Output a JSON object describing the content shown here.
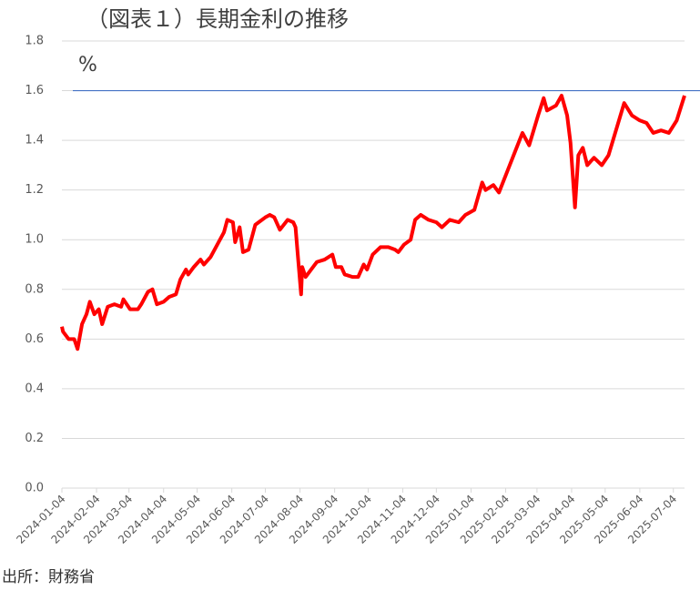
{
  "chart_data": {
    "type": "line",
    "title": "（図表１）長期金利の推移",
    "unit_label": "%",
    "source": "出所：財務省",
    "x": [
      "2024-01-04",
      "2024-01-05",
      "2024-01-10",
      "2024-01-15",
      "2024-01-18",
      "2024-01-22",
      "2024-01-26",
      "2024-01-29",
      "2024-02-02",
      "2024-02-06",
      "2024-02-09",
      "2024-02-14",
      "2024-02-20",
      "2024-02-26",
      "2024-02-28",
      "2024-03-05",
      "2024-03-12",
      "2024-03-15",
      "2024-03-21",
      "2024-03-25",
      "2024-03-29",
      "2024-04-04",
      "2024-04-09",
      "2024-04-15",
      "2024-04-19",
      "2024-04-24",
      "2024-04-26",
      "2024-05-01",
      "2024-05-07",
      "2024-05-10",
      "2024-05-16",
      "2024-05-22",
      "2024-05-28",
      "2024-05-31",
      "2024-06-05",
      "2024-06-07",
      "2024-06-11",
      "2024-06-14",
      "2024-06-19",
      "2024-06-25",
      "2024-06-28",
      "2024-07-04",
      "2024-07-08",
      "2024-07-12",
      "2024-07-17",
      "2024-07-24",
      "2024-07-29",
      "2024-07-31",
      "2024-08-02",
      "2024-08-05",
      "2024-08-06",
      "2024-08-09",
      "2024-08-14",
      "2024-08-19",
      "2024-08-26",
      "2024-09-02",
      "2024-09-05",
      "2024-09-10",
      "2024-09-13",
      "2024-09-20",
      "2024-09-25",
      "2024-09-30",
      "2024-10-03",
      "2024-10-08",
      "2024-10-15",
      "2024-10-22",
      "2024-10-28",
      "2024-10-31",
      "2024-11-05",
      "2024-11-11",
      "2024-11-15",
      "2024-11-20",
      "2024-11-27",
      "2024-12-04",
      "2024-12-09",
      "2024-12-16",
      "2024-12-24",
      "2024-12-30",
      "2025-01-07",
      "2025-01-14",
      "2025-01-17",
      "2025-01-24",
      "2025-01-29",
      "2025-02-05",
      "2025-02-12",
      "2025-02-19",
      "2025-02-25",
      "2025-03-05",
      "2025-03-10",
      "2025-03-13",
      "2025-03-21",
      "2025-03-26",
      "2025-03-31",
      "2025-04-03",
      "2025-04-07",
      "2025-04-10",
      "2025-04-14",
      "2025-04-18",
      "2025-04-24",
      "2025-05-01",
      "2025-05-07",
      "2025-05-13",
      "2025-05-21",
      "2025-05-28",
      "2025-06-04",
      "2025-06-10",
      "2025-06-16",
      "2025-06-23",
      "2025-06-30",
      "2025-07-07",
      "2025-07-14"
    ],
    "series": [
      {
        "name": "長期金利",
        "color": "#ff0000",
        "values": [
          0.65,
          0.63,
          0.6,
          0.6,
          0.56,
          0.66,
          0.7,
          0.75,
          0.7,
          0.72,
          0.66,
          0.73,
          0.74,
          0.73,
          0.76,
          0.72,
          0.72,
          0.74,
          0.79,
          0.8,
          0.74,
          0.75,
          0.77,
          0.78,
          0.84,
          0.88,
          0.86,
          0.89,
          0.92,
          0.9,
          0.93,
          0.98,
          1.03,
          1.08,
          1.07,
          0.99,
          1.05,
          0.95,
          0.96,
          1.06,
          1.07,
          1.09,
          1.1,
          1.09,
          1.04,
          1.08,
          1.07,
          1.05,
          0.94,
          0.78,
          0.89,
          0.85,
          0.88,
          0.91,
          0.92,
          0.94,
          0.89,
          0.89,
          0.86,
          0.85,
          0.85,
          0.9,
          0.88,
          0.94,
          0.97,
          0.97,
          0.96,
          0.95,
          0.98,
          1.0,
          1.08,
          1.1,
          1.08,
          1.07,
          1.05,
          1.08,
          1.07,
          1.1,
          1.12,
          1.23,
          1.2,
          1.22,
          1.19,
          1.27,
          1.35,
          1.43,
          1.38,
          1.5,
          1.57,
          1.52,
          1.54,
          1.58,
          1.5,
          1.39,
          1.13,
          1.34,
          1.37,
          1.3,
          1.33,
          1.3,
          1.34,
          1.43,
          1.55,
          1.5,
          1.48,
          1.47,
          1.43,
          1.44,
          1.43,
          1.48,
          1.58
        ]
      }
    ],
    "reference_line": {
      "value": 1.6,
      "color": "#4472c4"
    },
    "xlim": [
      "2024-01-04",
      "2025-07-14"
    ],
    "xticks": [
      "2024-01-04",
      "2024-02-04",
      "2024-03-04",
      "2024-04-04",
      "2024-05-04",
      "2024-06-04",
      "2024-07-04",
      "2024-08-04",
      "2024-09-04",
      "2024-10-04",
      "2024-11-04",
      "2024-12-04",
      "2025-01-04",
      "2025-02-04",
      "2025-03-04",
      "2025-04-04",
      "2025-05-04",
      "2025-06-04",
      "2025-07-04"
    ],
    "ylim": [
      0,
      1.8
    ],
    "yticks": [
      {
        "value": 0,
        "label": "0.0"
      },
      {
        "value": 0.2,
        "label": "0.2"
      },
      {
        "value": 0.4,
        "label": "0.4"
      },
      {
        "value": 0.6,
        "label": "0.6"
      },
      {
        "value": 0.8,
        "label": "0.8"
      },
      {
        "value": 1,
        "label": "1.0"
      },
      {
        "value": 1.2,
        "label": "1.2"
      },
      {
        "value": 1.4,
        "label": "1.4"
      },
      {
        "value": 1.6,
        "label": "1.6"
      },
      {
        "value": 1.8,
        "label": "1.8"
      }
    ],
    "grid": true
  }
}
